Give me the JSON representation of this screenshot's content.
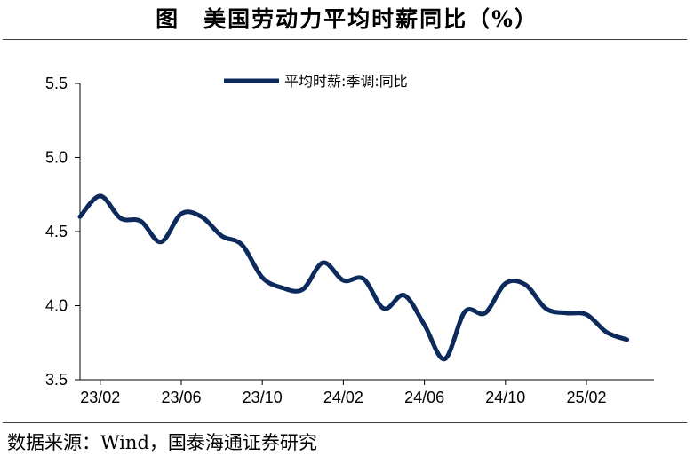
{
  "header": {
    "title": "图　美国劳动力平均时薪同比（%）"
  },
  "footer": {
    "source": "数据来源：Wind，国泰海通证券研究"
  },
  "chart_data": {
    "type": "line",
    "title": "",
    "xlabel": "",
    "ylabel": "",
    "ylim": [
      3.5,
      5.5
    ],
    "yticks": [
      "3.5",
      "4.0",
      "4.5",
      "5.0",
      "5.5"
    ],
    "xtick_labels": [
      "23/02",
      "23/06",
      "23/10",
      "24/02",
      "24/06",
      "24/10",
      "25/02"
    ],
    "grid": false,
    "legend_position": "top-center",
    "categories": [
      "23/01",
      "23/02",
      "23/03",
      "23/04",
      "23/05",
      "23/06",
      "23/07",
      "23/08",
      "23/09",
      "23/10",
      "23/11",
      "23/12",
      "24/01",
      "24/02",
      "24/03",
      "24/04",
      "24/05",
      "24/06",
      "24/07",
      "24/08",
      "24/09",
      "24/10",
      "24/11",
      "24/12",
      "25/01",
      "25/02",
      "25/03",
      "25/04"
    ],
    "series": [
      {
        "name": "平均时薪:季调:同比",
        "color": "#0d2a5c",
        "values": [
          4.6,
          4.74,
          4.59,
          4.57,
          4.43,
          4.62,
          4.6,
          4.47,
          4.41,
          4.19,
          4.12,
          4.11,
          4.29,
          4.17,
          4.18,
          3.98,
          4.07,
          3.87,
          3.64,
          3.96,
          3.95,
          4.15,
          4.14,
          3.98,
          3.95,
          3.94,
          3.82,
          3.77
        ]
      }
    ]
  }
}
